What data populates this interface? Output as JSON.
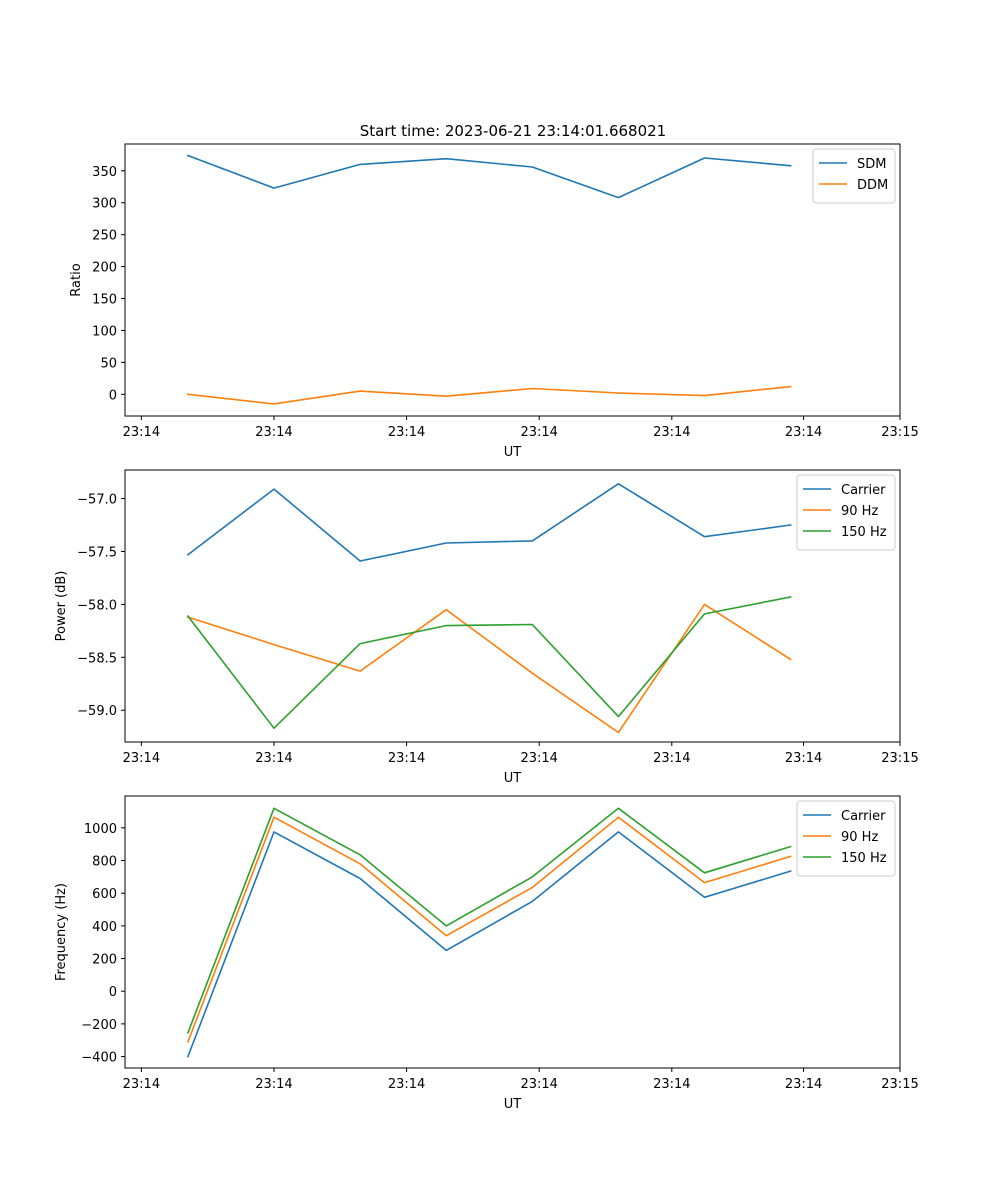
{
  "title": "Start time: 2023-06-21 23:14:01.668021",
  "colors": {
    "c0": "#1f77b4",
    "c1": "#ff7f0e",
    "c2": "#2ca02c"
  },
  "chart_data": [
    {
      "type": "line",
      "title": "Start time: 2023-06-21 23:14:01.668021",
      "xlabel": "UT",
      "ylabel": "Ratio",
      "x": [
        1,
        2,
        3,
        4,
        5,
        6,
        7,
        8
      ],
      "xlim": [
        0.27,
        9.27
      ],
      "xticks": [
        0.46,
        2,
        3.54,
        5.08,
        6.62,
        8.15,
        9.27
      ],
      "xtick_labels": [
        "23:14",
        "23:14",
        "23:14",
        "23:14",
        "23:14",
        "23:14",
        "23:15"
      ],
      "ylim": [
        -34,
        392
      ],
      "yticks": [
        0,
        50,
        100,
        150,
        200,
        250,
        300,
        350
      ],
      "ytick_labels": [
        "0",
        "50",
        "100",
        "150",
        "200",
        "250",
        "300",
        "350"
      ],
      "legend_position": "upper right",
      "series": [
        {
          "name": "SDM",
          "color": "#1f77b4",
          "values": [
            374,
            323,
            360,
            369,
            356,
            308,
            370,
            358
          ]
        },
        {
          "name": "DDM",
          "color": "#ff7f0e",
          "values": [
            0,
            -15,
            5,
            -3,
            9,
            2,
            -2,
            12
          ]
        }
      ]
    },
    {
      "type": "line",
      "xlabel": "UT",
      "ylabel": "Power (dB)",
      "x": [
        1,
        2,
        3,
        4,
        5,
        6,
        7,
        8
      ],
      "xlim": [
        0.27,
        9.27
      ],
      "xticks": [
        0.46,
        2,
        3.54,
        5.08,
        6.62,
        8.15,
        9.27
      ],
      "xtick_labels": [
        "23:14",
        "23:14",
        "23:14",
        "23:14",
        "23:14",
        "23:14",
        "23:15"
      ],
      "ylim": [
        -59.3,
        -56.73
      ],
      "yticks": [
        -59.0,
        -58.5,
        -58.0,
        -57.5,
        -57.0
      ],
      "ytick_labels": [
        "−59.0",
        "−58.5",
        "−58.0",
        "−57.5",
        "−57.0"
      ],
      "legend_position": "upper right",
      "series": [
        {
          "name": "Carrier",
          "color": "#1f77b4",
          "values": [
            -57.53,
            -56.91,
            -57.59,
            -57.42,
            -57.4,
            -56.86,
            -57.36,
            -57.25
          ]
        },
        {
          "name": "90 Hz",
          "color": "#ff7f0e",
          "values": [
            -58.12,
            -58.38,
            -58.63,
            -58.05,
            -58.65,
            -59.21,
            -58.0,
            -58.52
          ]
        },
        {
          "name": "150 Hz",
          "color": "#2ca02c",
          "values": [
            -58.11,
            -59.17,
            -58.37,
            -58.2,
            -58.19,
            -59.06,
            -58.09,
            -57.93
          ]
        }
      ]
    },
    {
      "type": "line",
      "xlabel": "UT",
      "ylabel": "Frequency (Hz)",
      "x": [
        1,
        2,
        3,
        4,
        5,
        6,
        7,
        8
      ],
      "xlim": [
        0.27,
        9.27
      ],
      "xticks": [
        0.46,
        2,
        3.54,
        5.08,
        6.62,
        8.15,
        9.27
      ],
      "xtick_labels": [
        "23:14",
        "23:14",
        "23:14",
        "23:14",
        "23:14",
        "23:14",
        "23:15"
      ],
      "ylim": [
        -470,
        1195
      ],
      "yticks": [
        -400,
        -200,
        0,
        200,
        400,
        600,
        800,
        1000
      ],
      "ytick_labels": [
        "−400",
        "−200",
        "0",
        "200",
        "400",
        "600",
        "800",
        "1000"
      ],
      "legend_position": "upper right",
      "series": [
        {
          "name": "Carrier",
          "color": "#1f77b4",
          "values": [
            -400,
            975,
            690,
            250,
            550,
            975,
            575,
            735
          ]
        },
        {
          "name": "90 Hz",
          "color": "#ff7f0e",
          "values": [
            -310,
            1065,
            780,
            340,
            635,
            1065,
            665,
            825
          ]
        },
        {
          "name": "150 Hz",
          "color": "#2ca02c",
          "values": [
            -255,
            1120,
            835,
            400,
            700,
            1120,
            725,
            885
          ]
        }
      ]
    }
  ]
}
